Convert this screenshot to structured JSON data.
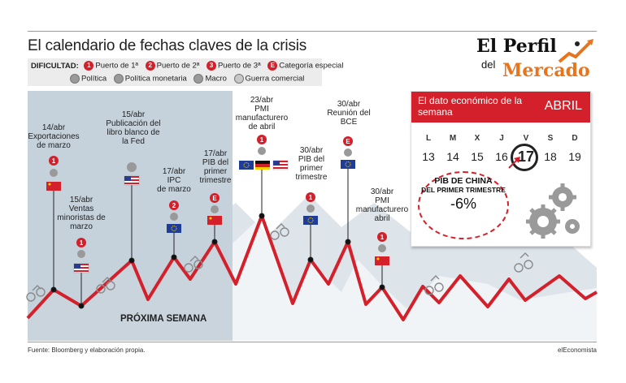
{
  "title": "El calendario de fechas claves de la crisis",
  "legend": {
    "label": "DIFICULTAD:",
    "items": [
      {
        "badge": "1",
        "label": "Puerto de 1ª"
      },
      {
        "badge": "2",
        "label": "Puerto de 2ª"
      },
      {
        "badge": "3",
        "label": "Puerto de 3ª"
      },
      {
        "badge": "E",
        "label": "Categoría especial"
      }
    ],
    "types": [
      {
        "icon": "politics-icon",
        "label": "Política"
      },
      {
        "icon": "monetary-policy-icon",
        "label": "Política monetaria"
      },
      {
        "icon": "macro-icon",
        "label": "Macro"
      },
      {
        "icon": "trade-war-icon",
        "label": "Guerra comercial"
      }
    ]
  },
  "logo": {
    "line1": "El Perfil",
    "line2": "del",
    "line3": "Mercado"
  },
  "colors": {
    "accent": "#d4202a",
    "mountain": "#c9d4dc",
    "next_week_bg": "#c5d2dc",
    "logo_orange": "#e8741c"
  },
  "next_week_label": "PRÓXIMA SEMANA",
  "events": [
    {
      "date": "14/abr",
      "text": [
        "Exportaciones",
        "de marzo"
      ],
      "difficulty": "1",
      "flag": "china"
    },
    {
      "date": "15/abr",
      "text": [
        "Ventas",
        "minoristas de",
        "marzo"
      ],
      "difficulty": "1",
      "flag": "usa"
    },
    {
      "date": "15/abr",
      "text": [
        "Publicación del",
        "libro blanco de",
        "la Fed"
      ],
      "difficulty": "",
      "flag": "usa"
    },
    {
      "date": "17/abr",
      "text": [
        "IPC",
        "de marzo"
      ],
      "difficulty": "2",
      "flag": "eu"
    },
    {
      "date": "17/abr",
      "text": [
        "PIB del",
        "primer",
        "trimestre"
      ],
      "difficulty": "E",
      "flag": "china"
    },
    {
      "date": "23/abr",
      "text": [
        "PMI",
        "manufacturero",
        "de abril"
      ],
      "difficulty": "1",
      "flag": "eu-de-usa"
    },
    {
      "date": "30/abr",
      "text": [
        "PIB del",
        "primer",
        "trimestre"
      ],
      "difficulty": "1",
      "flag": "eu"
    },
    {
      "date": "30/abr",
      "text": [
        "Reunión del",
        "BCE"
      ],
      "difficulty": "E",
      "flag": "eu"
    },
    {
      "date": "30/abr",
      "text": [
        "PMI",
        "manufacturero",
        "abril"
      ],
      "difficulty": "1",
      "flag": "china"
    }
  ],
  "calendar": {
    "header": "El dato económico de la semana",
    "month": "ABRIL",
    "weekdays": [
      "L",
      "M",
      "X",
      "J",
      "V",
      "S",
      "D"
    ],
    "days": [
      "13",
      "14",
      "15",
      "16",
      "17",
      "18",
      "19"
    ],
    "highlight_index": 4,
    "pib_title": "PIB DE CHINA",
    "pib_sub": "DEL PRIMER TRIMESTRE",
    "pib_value": "-6%"
  },
  "source": "Fuente: Bloomberg y elaboración propia.",
  "brand": "elEconomista"
}
